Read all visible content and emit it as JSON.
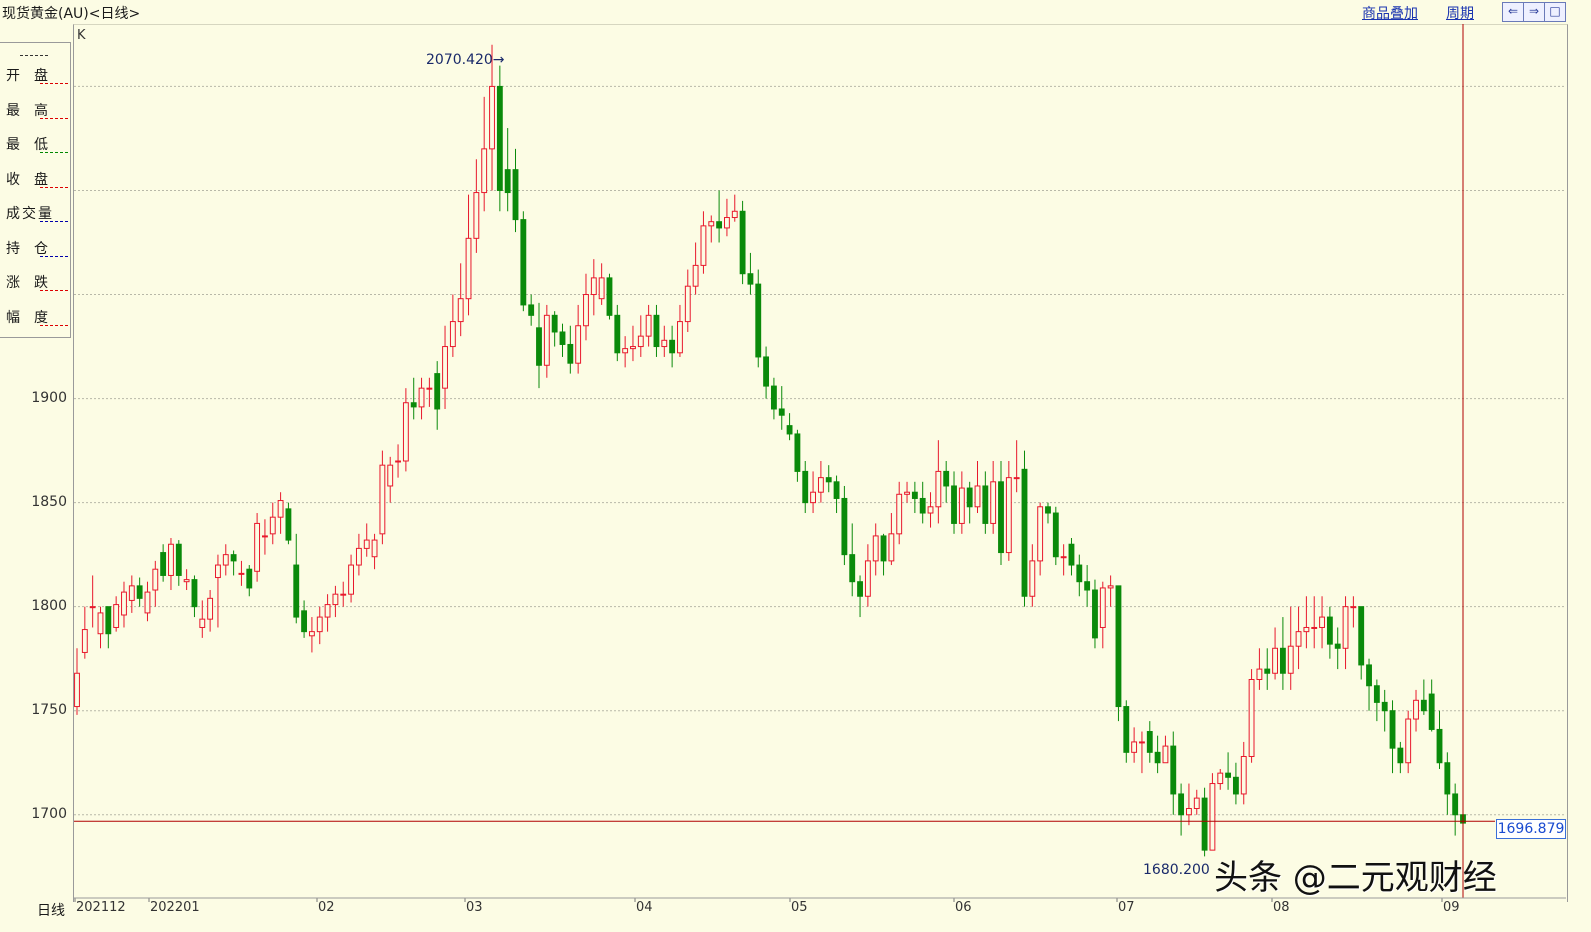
{
  "header": {
    "title": "现货黄金(AU)<日线>",
    "overlay_link": "商品叠加",
    "period_link": "周期",
    "nav_buttons": [
      "⇐",
      "⇒",
      "□"
    ]
  },
  "chart_label": "K",
  "info_panel": [
    {
      "label": "开盘",
      "dash_color": "#dd0000"
    },
    {
      "label": "最高",
      "dash_color": "#dd0000"
    },
    {
      "label": "最低",
      "dash_color": "#008800"
    },
    {
      "label": "收盘",
      "dash_color": "#dd0000"
    },
    {
      "label": "成交量",
      "dash_color": "#0000aa"
    },
    {
      "label": "持仓",
      "dash_color": "#0000aa"
    },
    {
      "label": "涨跌",
      "dash_color": "#dd0000"
    },
    {
      "label": "幅度",
      "dash_color": "#dd0000"
    }
  ],
  "period_label": "日线",
  "current_price": "1696.879",
  "annotations": {
    "high_label": "2070.420→",
    "low_label": "1680.200"
  },
  "watermark": "头条 @二元观财经",
  "colors": {
    "up": "#e8182c",
    "down": "#0a8a0a",
    "background": "#fcfce4",
    "grid": "#b8b8a8",
    "cursor": "#b00000"
  },
  "chart_data": {
    "type": "candlestick",
    "ylim": [
      1660,
      2080
    ],
    "y_ticks": [
      "1700",
      "1750",
      "1800",
      "1850",
      "1900"
    ],
    "x_ticks": [
      "202112",
      "202201",
      "02",
      "03",
      "04",
      "05",
      "06",
      "07",
      "08",
      "09"
    ],
    "max": 2070.42,
    "min": 1680.2,
    "last": 1696.879,
    "closes": [
      1768,
      1789,
      1800,
      1797,
      1787,
      1801,
      1807,
      1810,
      1804,
      1807,
      1818,
      1815,
      1830,
      1815,
      1813,
      1800,
      1794,
      1804,
      1820,
      1825,
      1822,
      1816,
      1809,
      1840,
      1834,
      1843,
      1851,
      1832,
      1795,
      1788,
      1788,
      1795,
      1801,
      1806,
      1806,
      1820,
      1828,
      1832,
      1832,
      1868,
      1868,
      1870,
      1898,
      1896,
      1905,
      1905,
      1895,
      1925,
      1937,
      1948,
      1977,
      1999,
      2020,
      2050,
      2000,
      1999,
      1986,
      1945,
      1940,
      1916,
      1940,
      1932,
      1926,
      1917,
      1935,
      1950,
      1958,
      1958,
      1940,
      1922,
      1924,
      1925,
      1930,
      1940,
      1925,
      1928,
      1922,
      1937,
      1954,
      1964,
      1983,
      1985,
      1982,
      1987,
      1990,
      1960,
      1955,
      1920,
      1906,
      1895,
      1892,
      1883,
      1865,
      1850,
      1855,
      1862,
      1860,
      1852,
      1825,
      1812,
      1805,
      1822,
      1834,
      1822,
      1835,
      1854,
      1855,
      1852,
      1845,
      1848,
      1865,
      1858,
      1840,
      1857,
      1848,
      1858,
      1840,
      1860,
      1826,
      1862,
      1862,
      1805,
      1822,
      1848,
      1845,
      1824,
      1824,
      1820,
      1812,
      1808,
      1785,
      1809,
      1810,
      1752,
      1730,
      1735,
      1735,
      1730,
      1725,
      1733,
      1710,
      1700,
      1703,
      1708,
      1683,
      1715,
      1720,
      1718,
      1710,
      1728,
      1765,
      1770,
      1768,
      1780,
      1768,
      1781,
      1788,
      1790,
      1790,
      1795,
      1782,
      1780,
      1800,
      1800,
      1772,
      1762,
      1754,
      1750,
      1732,
      1725,
      1746,
      1755,
      1750,
      1741,
      1725,
      1710,
      1700,
      1696
    ],
    "opens": [
      1752,
      1778,
      1800,
      1787,
      1800,
      1790,
      1796,
      1803,
      1810,
      1797,
      1808,
      1826,
      1815,
      1830,
      1812,
      1813,
      1790,
      1794,
      1814,
      1820,
      1825,
      1816,
      1818,
      1817,
      1834,
      1835,
      1843,
      1847,
      1820,
      1798,
      1786,
      1788,
      1795,
      1801,
      1806,
      1806,
      1820,
      1828,
      1824,
      1835,
      1858,
      1870,
      1870,
      1898,
      1896,
      1905,
      1912,
      1905,
      1925,
      1937,
      1948,
      1977,
      1999,
      2020,
      2050,
      2010,
      2010,
      1986,
      1945,
      1934,
      1916,
      1940,
      1932,
      1926,
      1917,
      1935,
      1950,
      1948,
      1958,
      1940,
      1922,
      1924,
      1925,
      1930,
      1940,
      1925,
      1928,
      1922,
      1937,
      1954,
      1964,
      1983,
      1985,
      1982,
      1987,
      1990,
      1960,
      1955,
      1920,
      1906,
      1895,
      1887,
      1883,
      1865,
      1850,
      1855,
      1862,
      1860,
      1852,
      1825,
      1812,
      1805,
      1822,
      1834,
      1822,
      1835,
      1854,
      1855,
      1852,
      1845,
      1848,
      1865,
      1858,
      1840,
      1857,
      1848,
      1858,
      1840,
      1860,
      1826,
      1862,
      1866,
      1805,
      1822,
      1848,
      1845,
      1824,
      1830,
      1820,
      1812,
      1808,
      1790,
      1809,
      1810,
      1752,
      1730,
      1735,
      1740,
      1730,
      1725,
      1733,
      1710,
      1700,
      1703,
      1708,
      1683,
      1715,
      1720,
      1718,
      1710,
      1728,
      1765,
      1770,
      1768,
      1780,
      1768,
      1781,
      1788,
      1790,
      1790,
      1795,
      1782,
      1780,
      1800,
      1800,
      1772,
      1762,
      1754,
      1750,
      1732,
      1725,
      1746,
      1755,
      1758,
      1741,
      1725,
      1710,
      1700
    ],
    "highs": [
      1780,
      1800,
      1815,
      1800,
      1800,
      1805,
      1812,
      1815,
      1814,
      1812,
      1822,
      1830,
      1833,
      1832,
      1818,
      1815,
      1803,
      1808,
      1825,
      1830,
      1827,
      1822,
      1820,
      1845,
      1842,
      1850,
      1855,
      1850,
      1835,
      1803,
      1795,
      1800,
      1806,
      1810,
      1812,
      1825,
      1835,
      1840,
      1835,
      1875,
      1872,
      1878,
      1905,
      1910,
      1910,
      1910,
      1918,
      1935,
      1950,
      1965,
      1998,
      2015,
      2045,
      2070,
      2060,
      2030,
      2020,
      1990,
      1950,
      1946,
      1945,
      1942,
      1936,
      1935,
      1945,
      1960,
      1967,
      1965,
      1960,
      1945,
      1930,
      1935,
      1940,
      1945,
      1945,
      1935,
      1935,
      1945,
      1962,
      1975,
      1990,
      1988,
      2000,
      1996,
      1998,
      1995,
      1970,
      1962,
      1925,
      1910,
      1906,
      1893,
      1885,
      1870,
      1865,
      1870,
      1868,
      1863,
      1858,
      1840,
      1815,
      1830,
      1840,
      1835,
      1845,
      1860,
      1860,
      1860,
      1860,
      1855,
      1880,
      1870,
      1865,
      1865,
      1860,
      1870,
      1865,
      1870,
      1870,
      1870,
      1880,
      1875,
      1830,
      1850,
      1850,
      1848,
      1830,
      1833,
      1825,
      1820,
      1813,
      1812,
      1815,
      1790,
      1755,
      1742,
      1740,
      1745,
      1738,
      1738,
      1740,
      1715,
      1715,
      1712,
      1713,
      1720,
      1722,
      1730,
      1725,
      1735,
      1770,
      1780,
      1780,
      1790,
      1795,
      1800,
      1800,
      1805,
      1805,
      1805,
      1800,
      1790,
      1805,
      1805,
      1800,
      1775,
      1765,
      1760,
      1755,
      1735,
      1750,
      1760,
      1765,
      1765,
      1750,
      1730,
      1715,
      1712
    ],
    "lows": [
      1748,
      1775,
      1790,
      1780,
      1780,
      1788,
      1790,
      1797,
      1800,
      1793,
      1800,
      1812,
      1808,
      1810,
      1808,
      1795,
      1785,
      1788,
      1790,
      1815,
      1815,
      1810,
      1805,
      1812,
      1825,
      1830,
      1835,
      1830,
      1792,
      1785,
      1778,
      1782,
      1788,
      1795,
      1800,
      1802,
      1815,
      1824,
      1818,
      1830,
      1850,
      1862,
      1865,
      1890,
      1890,
      1896,
      1885,
      1895,
      1920,
      1930,
      1940,
      1970,
      1990,
      2000,
      1990,
      1990,
      1980,
      1942,
      1935,
      1905,
      1910,
      1925,
      1920,
      1912,
      1912,
      1928,
      1940,
      1945,
      1938,
      1918,
      1915,
      1918,
      1920,
      1925,
      1920,
      1920,
      1915,
      1920,
      1932,
      1950,
      1960,
      1975,
      1975,
      1978,
      1985,
      1955,
      1950,
      1915,
      1900,
      1890,
      1885,
      1880,
      1860,
      1845,
      1845,
      1850,
      1855,
      1845,
      1820,
      1805,
      1795,
      1800,
      1815,
      1815,
      1820,
      1830,
      1850,
      1845,
      1840,
      1838,
      1840,
      1850,
      1835,
      1835,
      1840,
      1845,
      1835,
      1835,
      1820,
      1822,
      1855,
      1800,
      1800,
      1815,
      1840,
      1820,
      1815,
      1815,
      1805,
      1800,
      1780,
      1780,
      1800,
      1745,
      1725,
      1725,
      1720,
      1725,
      1720,
      1725,
      1700,
      1690,
      1695,
      1700,
      1680,
      1695,
      1712,
      1712,
      1705,
      1705,
      1725,
      1760,
      1760,
      1765,
      1760,
      1760,
      1770,
      1780,
      1780,
      1780,
      1775,
      1770,
      1770,
      1790,
      1765,
      1750,
      1745,
      1740,
      1720,
      1720,
      1720,
      1740,
      1748,
      1740,
      1722,
      1700,
      1690,
      1680
    ]
  }
}
